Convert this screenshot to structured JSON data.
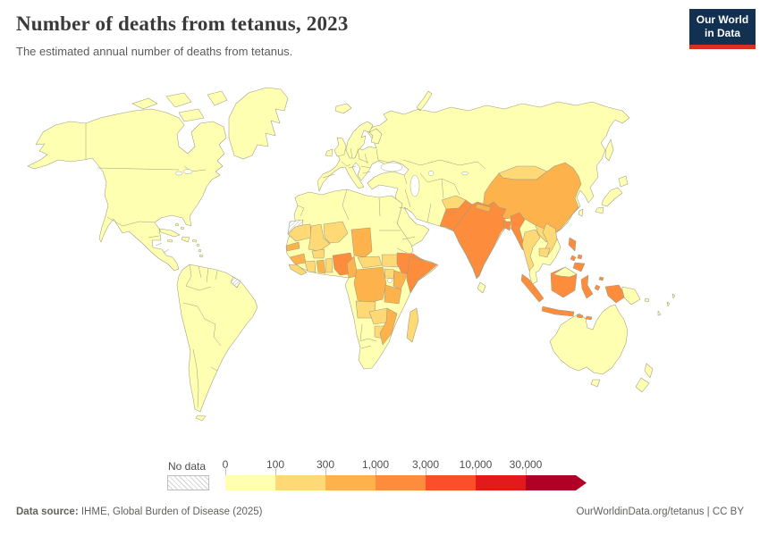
{
  "header": {
    "title": "Number of deaths from tetanus, 2023",
    "subtitle": "The estimated annual number of deaths from tetanus.",
    "logo_line1": "Our World",
    "logo_line2": "in Data",
    "logo_bg": "#12304f",
    "logo_accent": "#dc2c27"
  },
  "legend": {
    "no_data_label": "No data",
    "tick_labels": [
      "0",
      "100",
      "300",
      "1,000",
      "3,000",
      "10,000",
      "30,000"
    ]
  },
  "footer": {
    "source_label": "Data source:",
    "source_text": " IHME, Global Burden of Disease (2025)",
    "link_text": "OurWorldinData.org/tetanus | CC BY"
  },
  "chart_data": {
    "type": "choropleth_map",
    "title": "Number of deaths from tetanus, 2023",
    "unit": "deaths",
    "legend_position": "bottom",
    "bins": [
      {
        "range": "0-100",
        "color": "#ffffb2"
      },
      {
        "range": "100-300",
        "color": "#fed976"
      },
      {
        "range": "300-1,000",
        "color": "#feb24c"
      },
      {
        "range": "1,000-3,000",
        "color": "#fd8d3c"
      },
      {
        "range": "3,000-10,000",
        "color": "#fc4e2a"
      },
      {
        "range": "10,000-30,000",
        "color": "#e31a1c"
      },
      {
        "range": "30,000+",
        "color": "#b10026"
      }
    ],
    "no_data_regions": [
      "Western Sahara",
      "French Guiana"
    ],
    "regions": {
      "North America": "0-100",
      "Canadian Arctic islands": "0-100",
      "Greenland": "0-100",
      "Cuba": "0-100",
      "Hispaniola": "0-100",
      "Caribbean islands": "0-100",
      "South America": "0-100",
      "French Guiana": "no data",
      "Eurasia": "0-100",
      "Scandinavia": "0-100",
      "Finland": "0-100",
      "United Kingdom": "0-100",
      "Ireland": "0-100",
      "Iceland": "0-100",
      "Japan": "0-100",
      "Taiwan": "0-100",
      "Sri Lanka": "0-100",
      "Malaysia": "0-100",
      "Papua New Guinea": "0-100",
      "Australia": "0-100",
      "Tasmania": "0-100",
      "New Zealand": "0-100",
      "Pacific islands": "0-100",
      "Africa": "0-100",
      "Western Sahara": "no data",
      "Mauritania": "100-300",
      "Mali": "100-300",
      "Niger": "100-300",
      "Senegal": "300-1,000",
      "Guinea": "300-1,000",
      "Sierra Leone & Liberia": "100-300",
      "Cote d'Ivoire": "100-300",
      "Burkina Faso": "100-300",
      "Ghana": "300-1,000",
      "Togo & Benin": "100-300",
      "Nigeria": "1,000-3,000",
      "Chad": "300-1,000",
      "Cameroon": "300-1,000",
      "Central African Republic": "100-300",
      "South Sudan": "100-300",
      "Ethiopia": "1,000-3,000",
      "Somalia": "1,000-3,000",
      "DR Congo": "300-1,000",
      "Uganda": "100-300",
      "Kenya": "300-1,000",
      "Tanzania": "300-1,000",
      "Angola": "100-300",
      "Zambia": "100-300",
      "Zimbabwe": "100-300",
      "Mozambique": "300-1,000",
      "Madagascar": "100-300",
      "Afghanistan": "100-300",
      "Mongolia": "100-300",
      "China": "300-1,000",
      "Nepal": "300-1,000",
      "Pakistan": "1,000-3,000",
      "India": "1,000-3,000",
      "Bangladesh": "1,000-3,000",
      "Myanmar": "1,000-3,000",
      "Thailand": "100-300",
      "Laos": "100-300",
      "Vietnam": "100-300",
      "Cambodia": "100-300",
      "Philippines": "1,000-3,000",
      "Indonesia": "1,000-3,000"
    }
  }
}
